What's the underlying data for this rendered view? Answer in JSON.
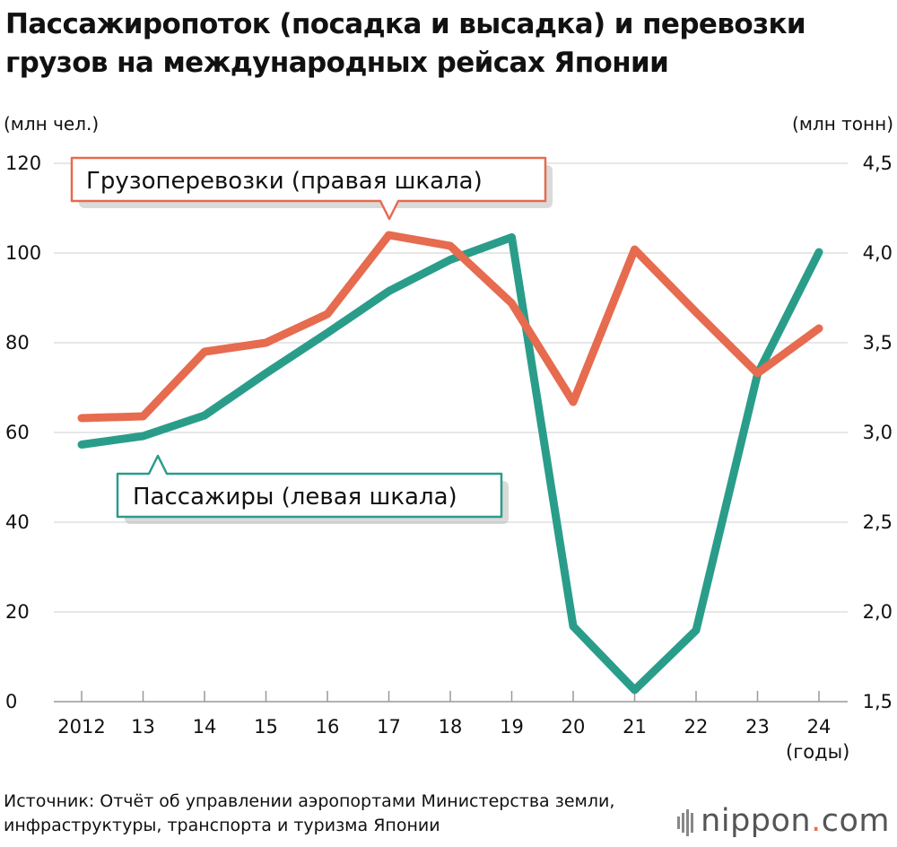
{
  "title": "Пассажиропоток (посадка и высадка) и перевозки грузов на международных рейсах Японии",
  "source": "Источник: Отчёт об управлении аэропортами Министерства земли, инфраструктуры, транспорта и туризма Японии",
  "logo": {
    "word": "nippon",
    "dot": ".",
    "suffix": "com"
  },
  "chart_data": {
    "type": "line",
    "x": [
      "2012",
      "13",
      "14",
      "15",
      "16",
      "17",
      "18",
      "19",
      "20",
      "21",
      "22",
      "23",
      "24"
    ],
    "xlabel": "(годы)",
    "ylabel_left": "(млн чел.)",
    "ylabel_right": "(млн тонн)",
    "ylim_left": [
      0,
      120
    ],
    "ylim_right": [
      1.5,
      4.5
    ],
    "yticks_left": [
      "0",
      "20",
      "40",
      "60",
      "80",
      "100",
      "120"
    ],
    "yticks_right": [
      "1,5",
      "2,0",
      "2,5",
      "3,0",
      "3,5",
      "4,0",
      "4,5"
    ],
    "grid": true,
    "series": [
      {
        "name": "Грузоперевозки (правая шкала)",
        "axis": "right",
        "color": "#e66b4f",
        "values": [
          3.08,
          3.09,
          3.45,
          3.5,
          3.66,
          4.1,
          4.04,
          3.72,
          3.17,
          4.02,
          3.67,
          3.33,
          3.58
        ]
      },
      {
        "name": "Пассажиры (левая шкала)",
        "axis": "left",
        "color": "#2a9d8a",
        "values": [
          57.3,
          59.2,
          63.8,
          73.2,
          82.2,
          91.5,
          98.5,
          103.5,
          16.8,
          2.6,
          15.9,
          73.0,
          100.2
        ]
      }
    ]
  }
}
